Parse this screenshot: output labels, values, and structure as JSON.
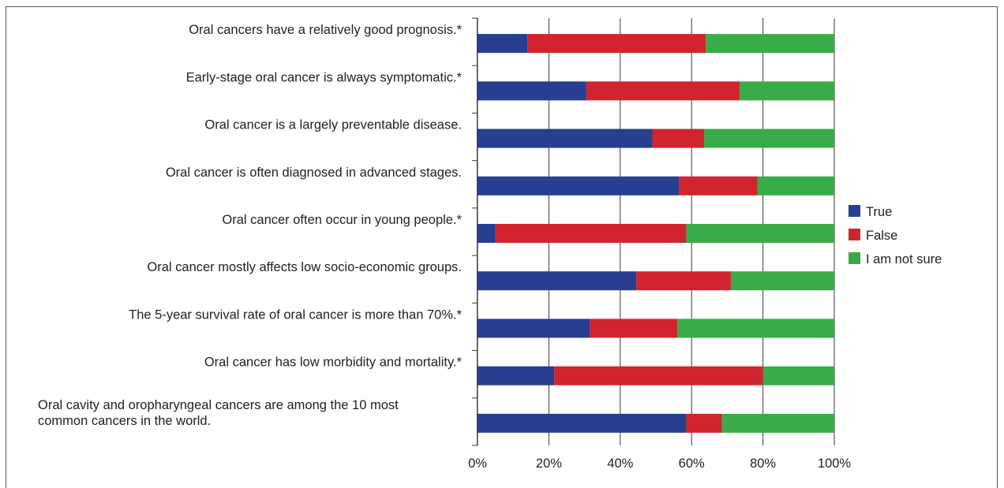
{
  "chart_data": {
    "type": "bar",
    "orientation": "horizontal",
    "stacked": true,
    "percent": true,
    "categories": [
      "Oral cancers have a relatively good prognosis.*",
      "Early-stage oral cancer is always symptomatic.*",
      "Oral cancer is a largely preventable disease.",
      "Oral cancer is often diagnosed in advanced stages.",
      "Oral cancer often occur in young people.*",
      "Oral cancer mostly affects low socio-economic groups.",
      "The 5-year survival rate of oral cancer is more than 70%.*",
      "Oral cancer has low morbidity and mortality.*",
      "Oral cavity and oropharyngeal cancers are among the 10 most common cancers in the world."
    ],
    "series": [
      {
        "name": "True",
        "color": "#273f90",
        "values": [
          14,
          30.5,
          49,
          56.5,
          5,
          44.5,
          31.5,
          21.5,
          58.5
        ]
      },
      {
        "name": "False",
        "color": "#d0242e",
        "values": [
          50,
          43,
          14.5,
          22,
          53.5,
          26.5,
          24.5,
          58.5,
          10
        ]
      },
      {
        "name": "I am not sure",
        "color": "#3aab49",
        "values": [
          36,
          26.5,
          36.5,
          21.5,
          41.5,
          29,
          44,
          20,
          31.5
        ]
      }
    ],
    "x_ticks": [
      "0%",
      "20%",
      "40%",
      "60%",
      "80%",
      "100%"
    ],
    "xlim": [
      0,
      100
    ],
    "grid": true,
    "legend_position": "right",
    "title": "",
    "xlabel": "",
    "ylabel": ""
  }
}
